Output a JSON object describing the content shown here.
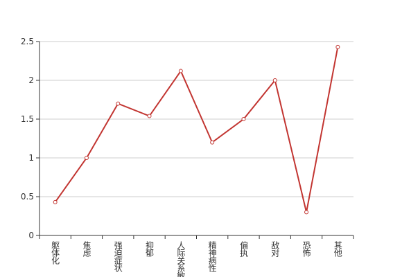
{
  "chart_data": {
    "type": "line",
    "categories": [
      "躯体化",
      "焦虑",
      "强迫症状",
      "抑郁",
      "人际关系敏感",
      "精神病性",
      "偏执",
      "敌对",
      "恐怖",
      "其他"
    ],
    "values": [
      0.43,
      1.0,
      1.7,
      1.54,
      2.12,
      1.2,
      1.5,
      2.0,
      0.3,
      2.43
    ],
    "color": "#c23531",
    "ylim": [
      0,
      2.5
    ],
    "yticks": [
      0,
      0.5,
      1,
      1.5,
      2,
      2.5
    ],
    "grid": true
  }
}
